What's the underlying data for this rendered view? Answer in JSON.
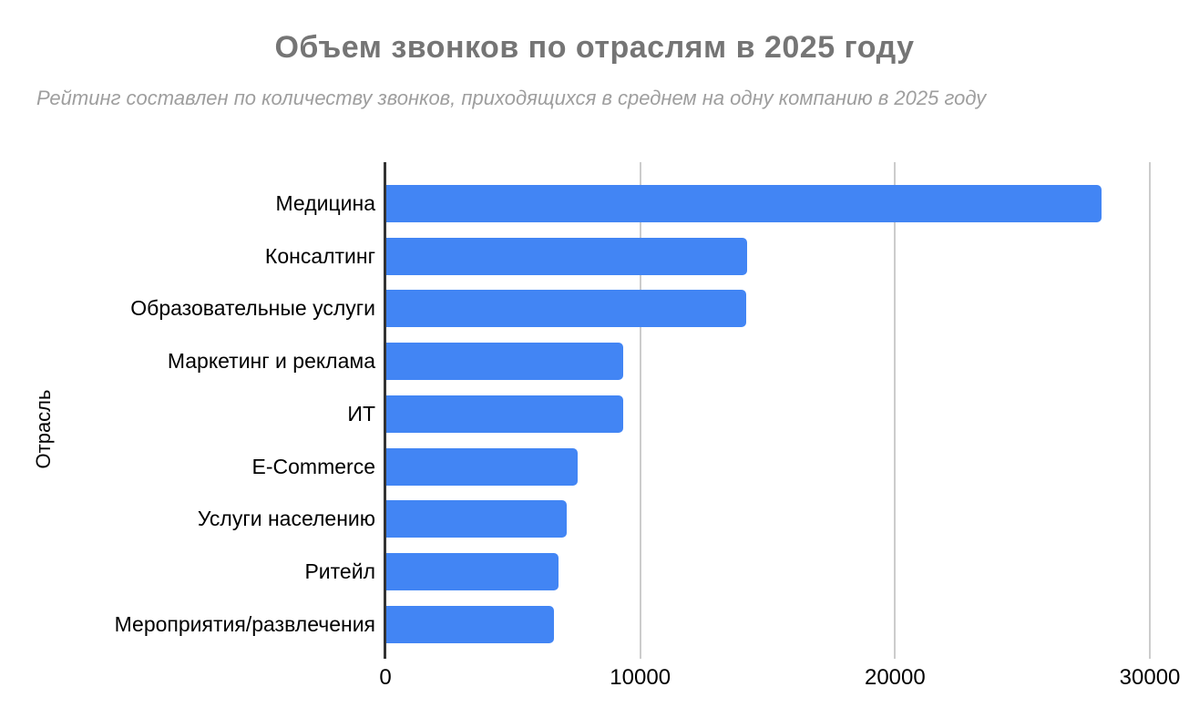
{
  "title": "Объем звонков по отраслям в 2025 году",
  "subtitle": "Рейтинг составлен по количеству звонков, приходящихся в среднем на одну компанию в 2025 году",
  "chart_data": {
    "type": "bar",
    "orientation": "horizontal",
    "title": "Объем звонков по отраслям в 2025 году",
    "subtitle": "Рейтинг составлен по количеству звонков, приходящихся в среднем на одну компанию в 2025 году",
    "xlabel": "",
    "ylabel": "Отрасль",
    "categories": [
      "Медицина",
      "Консалтинг",
      "Образовательные услуги",
      "Маркетинг и реклама",
      "ИТ",
      "E-Commerce",
      "Услуги населению",
      "Ритейл",
      "Мероприятия/развлечения"
    ],
    "values": [
      28100,
      14200,
      14150,
      9350,
      9340,
      7540,
      7130,
      6780,
      6620
    ],
    "x_ticks": [
      0,
      10000,
      20000,
      30000
    ],
    "xlim": [
      0,
      31000
    ],
    "grid": true,
    "legend": "none",
    "colors": {
      "bar": "#4285f4",
      "title": "#757575",
      "subtitle": "#9e9e9e",
      "axis_line": "#333333",
      "gridline": "#cccccc",
      "labels": "#000000"
    }
  }
}
